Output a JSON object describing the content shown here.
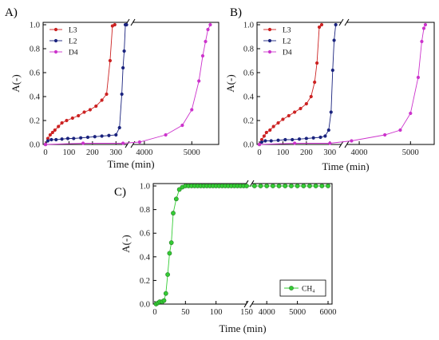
{
  "chart_data": [
    {
      "panel_label": "A)",
      "type": "line",
      "xlabel": "Time (min)",
      "ylabel": "A(-)",
      "ylim": [
        0,
        1.0
      ],
      "y_ticks": [
        "0.0",
        "0.2",
        "0.4",
        "0.6",
        "0.8",
        "1.0"
      ],
      "x_axis_broken": true,
      "x_segments": [
        {
          "range": [
            0,
            350
          ],
          "ticks": [
            "0",
            "100",
            "200",
            "300"
          ],
          "tick_values": [
            0,
            100,
            200,
            300
          ]
        },
        {
          "range": [
            3750,
            5500
          ],
          "ticks": [
            "4000",
            "5000"
          ],
          "tick_values": [
            4000,
            5000
          ]
        }
      ],
      "legend_position": "top-left",
      "series": [
        {
          "name": "L3",
          "color": "#cc2222",
          "segment": 0,
          "x": [
            0,
            10,
            20,
            30,
            40,
            55,
            70,
            90,
            115,
            140,
            165,
            190,
            215,
            240,
            260,
            275,
            285,
            295
          ],
          "y": [
            0,
            0.05,
            0.08,
            0.1,
            0.12,
            0.15,
            0.18,
            0.2,
            0.22,
            0.24,
            0.27,
            0.29,
            0.32,
            0.37,
            0.42,
            0.7,
            0.99,
            1.0
          ]
        },
        {
          "name": "L2",
          "color": "#1a237e",
          "segment": 0,
          "x": [
            0,
            10,
            25,
            45,
            70,
            95,
            120,
            150,
            180,
            210,
            240,
            270,
            300,
            315,
            325,
            330,
            335,
            340,
            345
          ],
          "y": [
            0,
            0.03,
            0.04,
            0.04,
            0.045,
            0.05,
            0.05,
            0.055,
            0.06,
            0.065,
            0.07,
            0.075,
            0.08,
            0.14,
            0.42,
            0.64,
            0.78,
            1.0,
            1.0
          ]
        },
        {
          "name": "D4",
          "color": "#cc33cc",
          "segment_points": [
            {
              "seg": 0,
              "x": [
                0,
                160,
                330
              ],
              "y": [
                0,
                0.01,
                0.01
              ]
            },
            {
              "seg": 1,
              "x": [
                3900,
                4450,
                4800,
                5000,
                5150,
                5230,
                5290,
                5340,
                5390
              ],
              "y": [
                0.02,
                0.08,
                0.16,
                0.29,
                0.53,
                0.74,
                0.86,
                0.96,
                1.0
              ]
            }
          ]
        }
      ]
    },
    {
      "panel_label": "B)",
      "type": "line",
      "xlabel": "Time (min)",
      "ylabel": "A(-)",
      "ylim": [
        0,
        1.0
      ],
      "y_ticks": [
        "0.0",
        "0.2",
        "0.4",
        "0.6",
        "0.8",
        "1.0"
      ],
      "x_axis_broken": true,
      "x_segments": [
        {
          "range": [
            0,
            350
          ],
          "ticks": [
            "0",
            "100",
            "200",
            "300"
          ],
          "tick_values": [
            0,
            100,
            200,
            300
          ]
        },
        {
          "range": [
            3750,
            5400
          ],
          "ticks": [
            "4000",
            "5000"
          ],
          "tick_values": [
            4000,
            5000
          ]
        }
      ],
      "legend_position": "top-left",
      "series": [
        {
          "name": "L3",
          "color": "#cc2222",
          "segment": 0,
          "x": [
            0,
            10,
            20,
            30,
            45,
            60,
            80,
            100,
            125,
            150,
            175,
            200,
            220,
            235,
            245,
            255,
            265
          ],
          "y": [
            0,
            0.04,
            0.07,
            0.1,
            0.12,
            0.15,
            0.18,
            0.21,
            0.24,
            0.27,
            0.3,
            0.34,
            0.4,
            0.52,
            0.68,
            0.98,
            1.0
          ]
        },
        {
          "name": "L2",
          "color": "#1a237e",
          "segment": 0,
          "x": [
            0,
            10,
            25,
            50,
            80,
            110,
            140,
            170,
            200,
            230,
            260,
            280,
            295,
            305,
            312,
            318,
            325
          ],
          "y": [
            0,
            0.02,
            0.03,
            0.03,
            0.035,
            0.04,
            0.04,
            0.045,
            0.05,
            0.055,
            0.06,
            0.07,
            0.12,
            0.27,
            0.62,
            0.87,
            1.0
          ]
        },
        {
          "name": "D4",
          "color": "#cc33cc",
          "segment_points": [
            {
              "seg": 0,
              "x": [
                0,
                150,
                300
              ],
              "y": [
                0,
                0.01,
                0.01
              ]
            },
            {
              "seg": 1,
              "x": [
                3850,
                4500,
                4800,
                5000,
                5150,
                5220,
                5260,
                5290
              ],
              "y": [
                0.03,
                0.08,
                0.12,
                0.26,
                0.56,
                0.86,
                0.97,
                1.0
              ]
            }
          ]
        }
      ]
    },
    {
      "panel_label": "C)",
      "type": "line",
      "xlabel": "Time (min)",
      "ylabel": "A(-)",
      "ylim": [
        0,
        1.0
      ],
      "y_ticks": [
        "0.0",
        "0.2",
        "0.4",
        "0.6",
        "0.8",
        "1.0"
      ],
      "x_axis_broken": true,
      "x_segments": [
        {
          "range": [
            0,
            150
          ],
          "ticks": [
            "0",
            "50",
            "100",
            "150"
          ],
          "tick_values": [
            0,
            50,
            100,
            150
          ]
        },
        {
          "range": [
            3500,
            6000
          ],
          "ticks": [
            "4000",
            "5000",
            "6000"
          ],
          "tick_values": [
            4000,
            5000,
            6000
          ]
        }
      ],
      "legend_position": "bottom-right",
      "series": [
        {
          "name": "CH₄",
          "color": "#33cc33",
          "segment_points": [
            {
              "seg": 0,
              "x": [
                2,
                5,
                8,
                12,
                15,
                18,
                21,
                24,
                27,
                30,
                35,
                40,
                45,
                50,
                55,
                60,
                65,
                70,
                75,
                80,
                85,
                90,
                95,
                100,
                105,
                110,
                115,
                120,
                125,
                130,
                135,
                140,
                145,
                150
              ],
              "y": [
                0.0,
                0.01,
                0.02,
                0.02,
                0.03,
                0.09,
                0.25,
                0.43,
                0.52,
                0.77,
                0.89,
                0.97,
                0.99,
                1.0,
                1.0,
                1.0,
                1.0,
                1.0,
                1.0,
                1.0,
                1.0,
                1.0,
                1.0,
                1.0,
                1.0,
                1.0,
                1.0,
                1.0,
                1.0,
                1.0,
                1.0,
                1.0,
                1.0,
                1.0
              ]
            },
            {
              "seg": 1,
              "x": [
                3600,
                3800,
                4000,
                4200,
                4400,
                4600,
                4800,
                5000,
                5200,
                5400,
                5600,
                5800,
                6000
              ],
              "y": [
                1.0,
                1.0,
                1.0,
                1.0,
                1.0,
                1.0,
                1.0,
                1.0,
                1.0,
                1.0,
                1.0,
                1.0,
                1.0
              ]
            }
          ]
        }
      ]
    }
  ]
}
